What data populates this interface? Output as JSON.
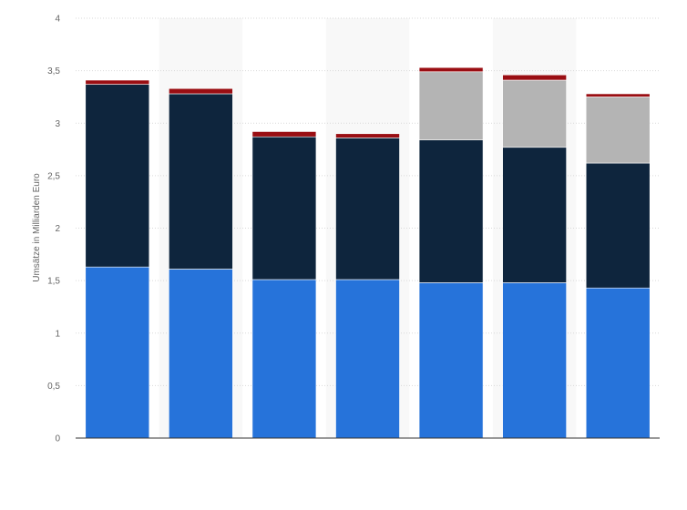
{
  "chart_data": {
    "type": "bar",
    "stacked": true,
    "ylabel": "Umsätze in Milliarden Euro",
    "ylim": [
      0,
      4
    ],
    "y_ticks": [
      "0",
      "0,5",
      "1",
      "1,5",
      "2",
      "2,5",
      "3",
      "3,5",
      "4"
    ],
    "grid": true,
    "alternating_column_shading": true,
    "categories": [
      "",
      "",
      "",
      "",
      "",
      "",
      ""
    ],
    "series": [
      {
        "values": [
          1.63,
          1.61,
          1.51,
          1.51,
          1.48,
          1.48,
          1.43
        ],
        "color": "#2673da"
      },
      {
        "values": [
          1.74,
          1.67,
          1.36,
          1.35,
          1.36,
          1.29,
          1.19
        ],
        "color": "#0e253d"
      },
      {
        "values": [
          0,
          0,
          0,
          0,
          0.65,
          0.64,
          0.63
        ],
        "color": "#b4b4b4"
      },
      {
        "values": [
          0.04,
          0.05,
          0.05,
          0.04,
          0.04,
          0.05,
          0.03
        ],
        "color": "#9a0e13"
      }
    ]
  }
}
